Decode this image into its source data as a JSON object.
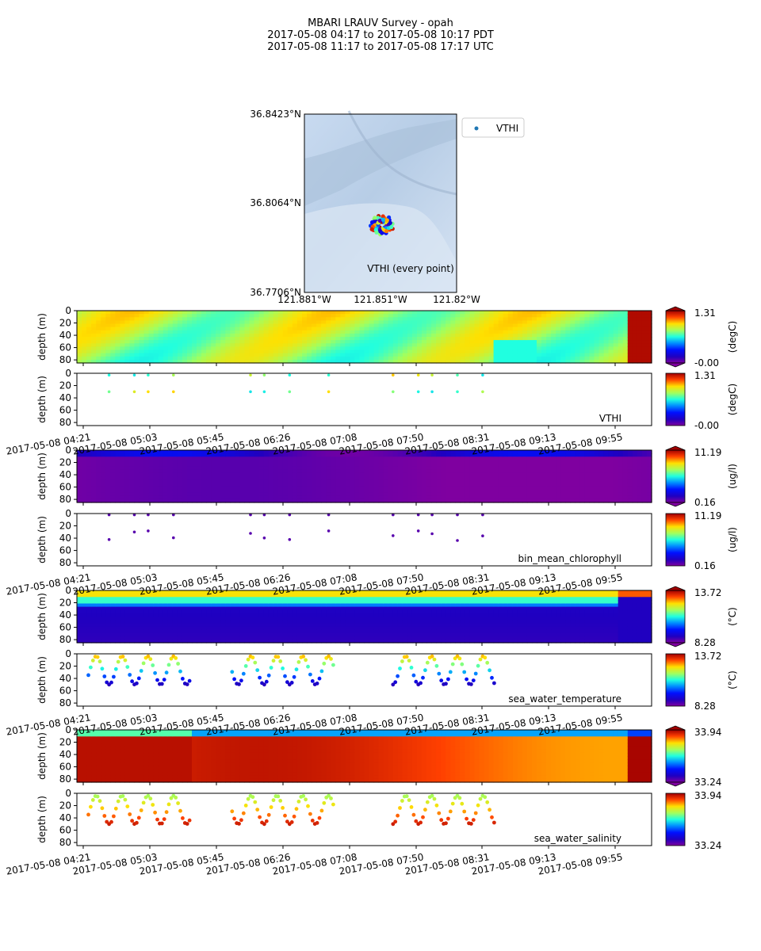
{
  "title_lines": [
    "MBARI LRAUV Survey - opah",
    "2017-05-08 04:17  to  2017-05-08 10:17 PDT",
    "2017-05-08 11:17  to  2017-05-08 17:17 UTC"
  ],
  "map": {
    "lat_ticks": [
      "36.8423°N",
      "36.8064°N",
      "36.7706°N"
    ],
    "lon_ticks": [
      "121.881°W",
      "121.851°W",
      "121.82°W"
    ],
    "legend_label": "VTHI",
    "legend_color": "#1f77b4",
    "caption": "VTHI (every point)"
  },
  "time_ticks": [
    "2017-05-08 04:21",
    "2017-05-08 05:03",
    "2017-05-08 05:45",
    "2017-05-08 06:26",
    "2017-05-08 07:08",
    "2017-05-08 07:50",
    "2017-05-08 08:31",
    "2017-05-08 09:13",
    "2017-05-08 09:55"
  ],
  "depth_ticks": [
    "0",
    "20",
    "40",
    "60",
    "80"
  ],
  "ylabel": "depth (m)",
  "chart_data": [
    {
      "type": "heatmap",
      "name": "",
      "ylabel": "depth (m)",
      "ylim": [
        85,
        0
      ],
      "colorbar": {
        "min": "-0.00",
        "max": "1.31",
        "unit": "(degC)",
        "colormap": "jet"
      }
    },
    {
      "type": "scatter",
      "name": "VTHI",
      "ylabel": "depth (m)",
      "ylim": [
        85,
        0
      ],
      "colorbar": {
        "min": "-0.00",
        "max": "1.31",
        "unit": "(degC)",
        "colormap": "jet"
      }
    },
    {
      "type": "heatmap",
      "name": "",
      "ylabel": "depth (m)",
      "ylim": [
        85,
        0
      ],
      "colorbar": {
        "min": "0.16",
        "max": "11.19",
        "unit": "(ug/l)",
        "colormap": "jet"
      }
    },
    {
      "type": "scatter",
      "name": "bin_mean_chlorophyll",
      "ylabel": "depth (m)",
      "ylim": [
        85,
        0
      ],
      "colorbar": {
        "min": "0.16",
        "max": "11.19",
        "unit": "(ug/l)",
        "colormap": "jet"
      }
    },
    {
      "type": "heatmap",
      "name": "",
      "ylabel": "depth (m)",
      "ylim": [
        85,
        0
      ],
      "colorbar": {
        "min": "8.28",
        "max": "13.72",
        "unit": "(°C)",
        "colormap": "jet"
      }
    },
    {
      "type": "scatter",
      "name": "sea_water_temperature",
      "ylabel": "depth (m)",
      "ylim": [
        85,
        0
      ],
      "colorbar": {
        "min": "8.28",
        "max": "13.72",
        "unit": "(°C)",
        "colormap": "jet"
      }
    },
    {
      "type": "heatmap",
      "name": "",
      "ylabel": "depth (m)",
      "ylim": [
        85,
        0
      ],
      "colorbar": {
        "min": "33.24",
        "max": "33.94",
        "unit": "",
        "colormap": "jet"
      }
    },
    {
      "type": "scatter",
      "name": "sea_water_salinity",
      "ylabel": "depth (m)",
      "ylim": [
        85,
        0
      ],
      "colorbar": {
        "min": "33.24",
        "max": "33.94",
        "unit": "",
        "colormap": "jet"
      }
    }
  ]
}
